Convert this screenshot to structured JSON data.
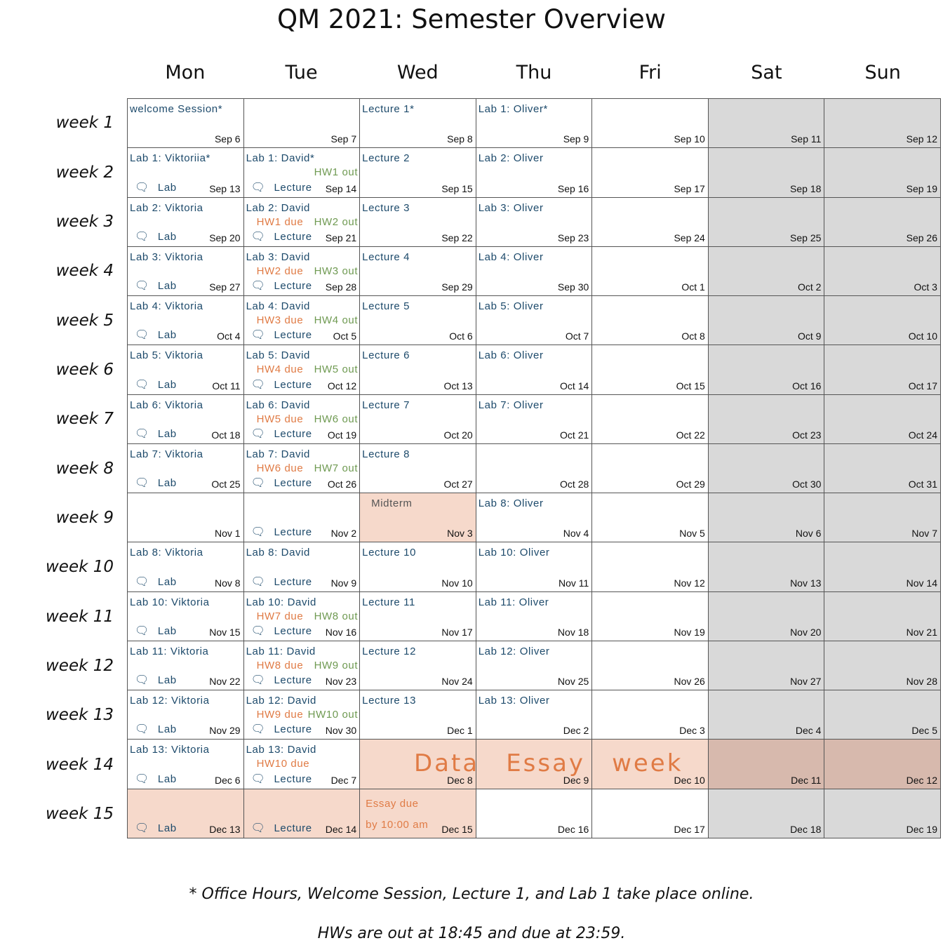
{
  "title": "QM 2021: Semester Overview",
  "days": [
    "Mon",
    "Tue",
    "Wed",
    "Thu",
    "Fri",
    "Sat",
    "Sun"
  ],
  "weeks": [
    "week 1",
    "week 2",
    "week 3",
    "week 4",
    "week 5",
    "week 6",
    "week 7",
    "week 8",
    "week 9",
    "week 10",
    "week 11",
    "week 12",
    "week 13",
    "week 14",
    "week 15"
  ],
  "icons": {
    "chat": "chat-bubbles-icon"
  },
  "colors": {
    "event_text": "#1d4a6b",
    "hw_due": "#e07b45",
    "hw_out": "#6f9a52",
    "highlight": "#f6d9cb",
    "weekend": "#d9d9d9"
  },
  "rows": [
    [
      {
        "date": "Sep 6",
        "l1": "welcome Session*"
      },
      {
        "date": "Sep 7"
      },
      {
        "date": "Sep 8",
        "l1": "Lecture 1*"
      },
      {
        "date": "Sep 9",
        "l1": "Lab 1: Oliver*"
      },
      {
        "date": "Sep 10"
      },
      {
        "date": "Sep 11"
      },
      {
        "date": "Sep 12"
      }
    ],
    [
      {
        "date": "Sep 13",
        "l1": "Lab 1: Viktoriia*",
        "l3": "Lab"
      },
      {
        "date": "Sep 14",
        "l1": "Lab 1: David*",
        "out": "HW1 out",
        "l3": "Lecture"
      },
      {
        "date": "Sep 15",
        "l1": "Lecture 2"
      },
      {
        "date": "Sep 16",
        "l1": "Lab 2: Oliver"
      },
      {
        "date": "Sep 17"
      },
      {
        "date": "Sep 18"
      },
      {
        "date": "Sep 19"
      }
    ],
    [
      {
        "date": "Sep 20",
        "l1": "Lab 2: Viktoria",
        "l3": "Lab"
      },
      {
        "date": "Sep 21",
        "l1": "Lab 2: David",
        "due": "HW1 due",
        "out": "HW2 out",
        "l3": "Lecture"
      },
      {
        "date": "Sep 22",
        "l1": "Lecture 3"
      },
      {
        "date": "Sep 23",
        "l1": "Lab 3: Oliver"
      },
      {
        "date": "Sep 24"
      },
      {
        "date": "Sep 25"
      },
      {
        "date": "Sep 26"
      }
    ],
    [
      {
        "date": "Sep 27",
        "l1": "Lab 3: Viktoria",
        "l3": "Lab"
      },
      {
        "date": "Sep 28",
        "l1": "Lab 3: David",
        "due": "HW2 due",
        "out": "HW3 out",
        "l3": "Lecture"
      },
      {
        "date": "Sep 29",
        "l1": "Lecture 4"
      },
      {
        "date": "Sep 30",
        "l1": "Lab 4: Oliver"
      },
      {
        "date": "Oct 1"
      },
      {
        "date": "Oct 2"
      },
      {
        "date": "Oct 3"
      }
    ],
    [
      {
        "date": "Oct 4",
        "l1": "Lab 4: Viktoria",
        "l3": "Lab"
      },
      {
        "date": "Oct 5",
        "l1": "Lab 4: David",
        "due": "HW3 due",
        "out": "HW4 out",
        "l3": "Lecture"
      },
      {
        "date": "Oct 6",
        "l1": "Lecture 5"
      },
      {
        "date": "Oct 7",
        "l1": "Lab 5: Oliver"
      },
      {
        "date": "Oct 8"
      },
      {
        "date": "Oct 9"
      },
      {
        "date": "Oct 10"
      }
    ],
    [
      {
        "date": "Oct 11",
        "l1": "Lab 5: Viktoria",
        "l3": "Lab"
      },
      {
        "date": "Oct 12",
        "l1": "Lab 5: David",
        "due": "HW4 due",
        "out": "HW5 out",
        "l3": "Lecture"
      },
      {
        "date": "Oct 13",
        "l1": "Lecture 6"
      },
      {
        "date": "Oct 14",
        "l1": "Lab 6: Oliver"
      },
      {
        "date": "Oct 15"
      },
      {
        "date": "Oct 16"
      },
      {
        "date": "Oct 17"
      }
    ],
    [
      {
        "date": "Oct 18",
        "l1": "Lab 6: Viktoria",
        "l3": "Lab"
      },
      {
        "date": "Oct 19",
        "l1": "Lab 6: David",
        "due": "HW5 due",
        "out": "HW6 out",
        "l3": "Lecture"
      },
      {
        "date": "Oct 20",
        "l1": "Lecture 7"
      },
      {
        "date": "Oct 21",
        "l1": "Lab 7: Oliver"
      },
      {
        "date": "Oct 22"
      },
      {
        "date": "Oct 23"
      },
      {
        "date": "Oct 24"
      }
    ],
    [
      {
        "date": "Oct 25",
        "l1": "Lab 7: Viktoria",
        "l3": "Lab"
      },
      {
        "date": "Oct 26",
        "l1": "Lab 7: David",
        "due": "HW6 due",
        "out": "HW7 out",
        "l3": "Lecture"
      },
      {
        "date": "Oct 27",
        "l1": "Lecture 8"
      },
      {
        "date": "Oct 28"
      },
      {
        "date": "Oct 29"
      },
      {
        "date": "Oct 30"
      },
      {
        "date": "Oct 31"
      }
    ],
    [
      {
        "date": "Nov 1"
      },
      {
        "date": "Nov 2",
        "l3": "Lecture"
      },
      {
        "date": "Nov 3",
        "l1": "Midterm",
        "peach": true
      },
      {
        "date": "Nov 4",
        "l1": "Lab 8: Oliver"
      },
      {
        "date": "Nov 5"
      },
      {
        "date": "Nov 6"
      },
      {
        "date": "Nov 7"
      }
    ],
    [
      {
        "date": "Nov 8",
        "l1": "Lab 8: Viktoria",
        "l3": "Lab"
      },
      {
        "date": "Nov 9",
        "l1": "Lab 8: David",
        "l3": "Lecture"
      },
      {
        "date": "Nov 10",
        "l1": "Lecture 10"
      },
      {
        "date": "Nov 11",
        "l1": "Lab 10: Oliver"
      },
      {
        "date": "Nov 12"
      },
      {
        "date": "Nov 13"
      },
      {
        "date": "Nov 14"
      }
    ],
    [
      {
        "date": "Nov 15",
        "l1": "Lab 10: Viktoria",
        "l3": "Lab"
      },
      {
        "date": "Nov 16",
        "l1": "Lab 10: David",
        "due": "HW7 due",
        "out": "HW8 out",
        "l3": "Lecture"
      },
      {
        "date": "Nov 17",
        "l1": "Lecture 11"
      },
      {
        "date": "Nov 18",
        "l1": "Lab 11: Oliver"
      },
      {
        "date": "Nov 19"
      },
      {
        "date": "Nov 20"
      },
      {
        "date": "Nov 21"
      }
    ],
    [
      {
        "date": "Nov 22",
        "l1": "Lab 11: Viktoria",
        "l3": "Lab"
      },
      {
        "date": "Nov 23",
        "l1": "Lab 11: David",
        "due": "HW8 due",
        "out": "HW9 out",
        "l3": "Lecture"
      },
      {
        "date": "Nov 24",
        "l1": "Lecture 12"
      },
      {
        "date": "Nov 25",
        "l1": "Lab 12: Oliver"
      },
      {
        "date": "Nov 26"
      },
      {
        "date": "Nov 27"
      },
      {
        "date": "Nov 28"
      }
    ],
    [
      {
        "date": "Nov 29",
        "l1": "Lab 12: Viktoria",
        "l3": "Lab"
      },
      {
        "date": "Nov 30",
        "l1": "Lab 12: David",
        "due": "HW9 due",
        "out": "HW10 out",
        "l3": "Lecture"
      },
      {
        "date": "Dec 1",
        "l1": "Lecture 13"
      },
      {
        "date": "Dec 2",
        "l1": "Lab 13: Oliver"
      },
      {
        "date": "Dec 3"
      },
      {
        "date": "Dec 4"
      },
      {
        "date": "Dec 5"
      }
    ],
    [
      {
        "date": "Dec 6",
        "l1": "Lab 13: Viktoria",
        "l3": "Lab"
      },
      {
        "date": "Dec 7",
        "l1": "Lab 13: David",
        "due": "HW10 due",
        "l3": "Lecture"
      },
      {
        "date": "Dec 8",
        "peach": true
      },
      {
        "date": "Dec 9",
        "peach": true
      },
      {
        "date": "Dec 10",
        "peach": true
      },
      {
        "date": "Dec 11",
        "peach": true
      },
      {
        "date": "Dec 12",
        "peach": true
      }
    ],
    [
      {
        "date": "Dec 13",
        "l3": "Lab",
        "peach": true
      },
      {
        "date": "Dec 14",
        "l3": "Lecture",
        "peach": true
      },
      {
        "date": "Dec 15",
        "peach": true,
        "essay": [
          "Essay due",
          "by 10:00 am"
        ]
      },
      {
        "date": "Dec 16"
      },
      {
        "date": "Dec 17"
      },
      {
        "date": "Dec 18"
      },
      {
        "date": "Dec 19"
      }
    ]
  ],
  "data_essay_week": [
    "Data",
    "Essay",
    "week"
  ],
  "notes": [
    "* Office Hours, Welcome Session, Lecture 1, and Lab 1 take place online.",
    "HWs are out at 18:45 and due at 23:59."
  ]
}
